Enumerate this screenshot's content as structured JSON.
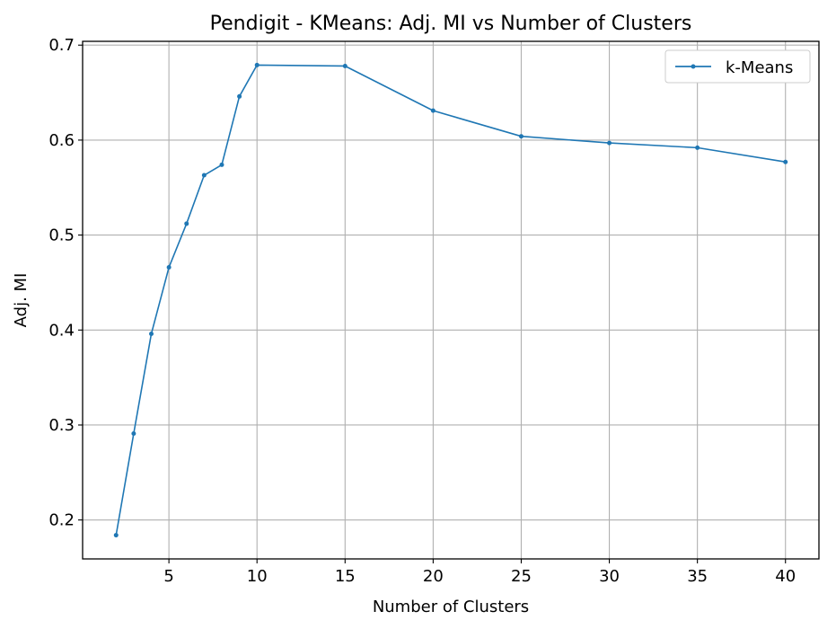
{
  "chart_data": {
    "type": "line",
    "title": "Pendigit - KMeans: Adj. MI vs Number of Clusters",
    "xlabel": "Number of Clusters",
    "ylabel": "Adj. MI",
    "x": [
      2,
      3,
      4,
      5,
      6,
      7,
      8,
      9,
      10,
      15,
      20,
      25,
      30,
      35,
      40
    ],
    "series": [
      {
        "name": "k-Means",
        "color": "#1f77b4",
        "values": [
          0.184,
          0.291,
          0.396,
          0.466,
          0.512,
          0.563,
          0.574,
          0.646,
          0.679,
          0.678,
          0.631,
          0.604,
          0.597,
          0.592,
          0.577
        ]
      }
    ],
    "xlim": [
      0.1,
      41.9
    ],
    "ylim": [
      0.159,
      0.704
    ],
    "xticks": [
      5,
      10,
      15,
      20,
      25,
      30,
      35,
      40
    ],
    "yticks": [
      0.2,
      0.3,
      0.4,
      0.5,
      0.6,
      0.7
    ],
    "grid": true,
    "legend_position": "top-right"
  }
}
